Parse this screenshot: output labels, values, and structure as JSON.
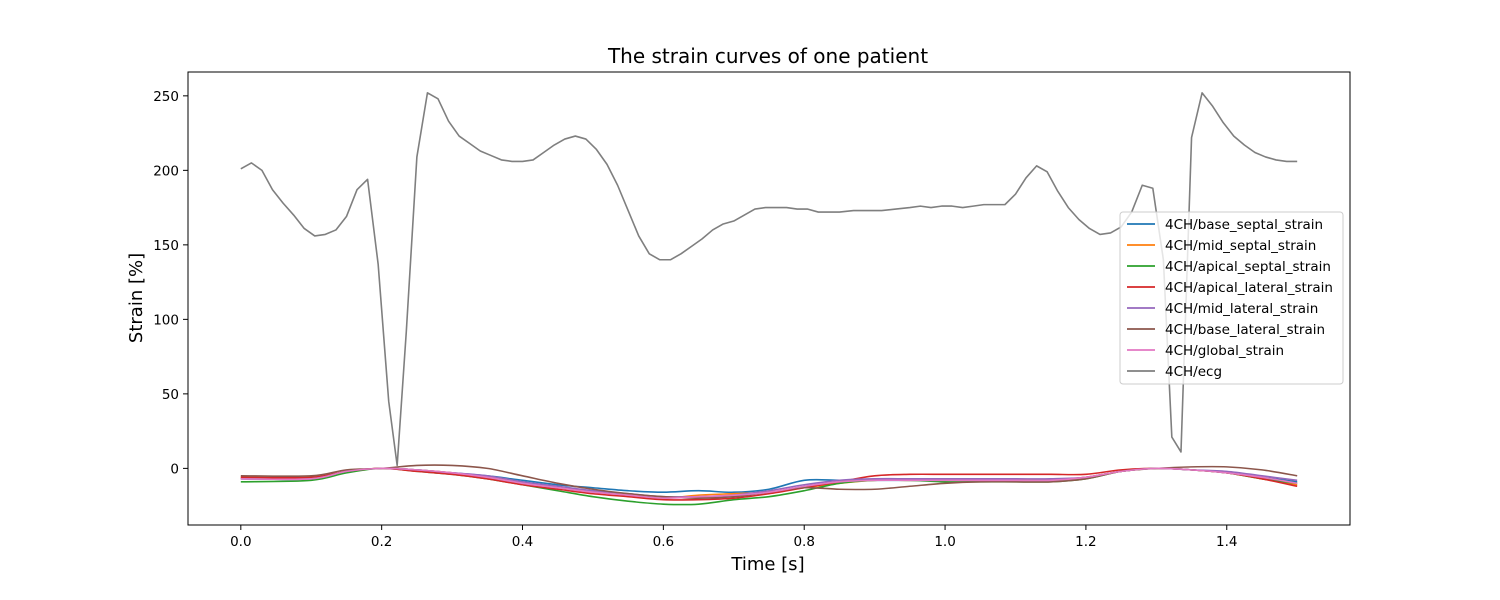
{
  "chart_data": {
    "type": "line",
    "title": "The strain curves of one patient",
    "xlabel": "Time [s]",
    "ylabel": "Strain [%]",
    "xlim": [
      -0.075,
      1.575
    ],
    "ylim": [
      -38,
      266
    ],
    "xticks": [
      0.0,
      0.2,
      0.4,
      0.6,
      0.8,
      1.0,
      1.2,
      1.4
    ],
    "xtick_labels": [
      "0.0",
      "0.2",
      "0.4",
      "0.6",
      "0.8",
      "1.0",
      "1.2",
      "1.4"
    ],
    "yticks": [
      0,
      50,
      100,
      150,
      200,
      250
    ],
    "ytick_labels": [
      "0",
      "50",
      "100",
      "150",
      "200",
      "250"
    ],
    "grid": false,
    "legend_position": "center-right",
    "series": [
      {
        "name": "4CH/base_septal_strain",
        "color": "#1f77b4",
        "x": [
          0,
          0.1,
          0.15,
          0.2,
          0.25,
          0.3,
          0.35,
          0.4,
          0.45,
          0.5,
          0.55,
          0.6,
          0.65,
          0.7,
          0.75,
          0.8,
          0.85,
          0.9,
          0.95,
          1.0,
          1.05,
          1.1,
          1.15,
          1.2,
          1.25,
          1.3,
          1.35,
          1.4,
          1.45,
          1.5
        ],
        "y": [
          -7,
          -7,
          -2,
          0,
          -1,
          -3,
          -5,
          -8,
          -11,
          -13,
          -15,
          -16,
          -15,
          -16,
          -14,
          -8,
          -8,
          -8,
          -8,
          -8,
          -8,
          -8,
          -8,
          -6,
          -2,
          0,
          -1,
          -3,
          -6,
          -9
        ]
      },
      {
        "name": "4CH/mid_septal_strain",
        "color": "#ff7f0e",
        "x": [
          0,
          0.1,
          0.15,
          0.2,
          0.25,
          0.3,
          0.35,
          0.4,
          0.45,
          0.5,
          0.55,
          0.6,
          0.65,
          0.7,
          0.75,
          0.8,
          0.85,
          0.9,
          0.95,
          1.0,
          1.05,
          1.1,
          1.15,
          1.2,
          1.25,
          1.3,
          1.35,
          1.4,
          1.45,
          1.5
        ],
        "y": [
          -6,
          -6,
          -2,
          0,
          -1,
          -3,
          -6,
          -10,
          -13,
          -16,
          -18,
          -20,
          -18,
          -17,
          -16,
          -13,
          -10,
          -8,
          -8,
          -8,
          -8,
          -8,
          -8,
          -6,
          -2,
          0,
          -1,
          -3,
          -7,
          -11
        ]
      },
      {
        "name": "4CH/apical_septal_strain",
        "color": "#2ca02c",
        "x": [
          0,
          0.1,
          0.15,
          0.2,
          0.25,
          0.3,
          0.35,
          0.4,
          0.45,
          0.5,
          0.55,
          0.6,
          0.65,
          0.7,
          0.75,
          0.8,
          0.85,
          0.9,
          0.95,
          1.0,
          1.05,
          1.1,
          1.15,
          1.2,
          1.25,
          1.3,
          1.35,
          1.4,
          1.45,
          1.5
        ],
        "y": [
          -9,
          -8,
          -3,
          0,
          -2,
          -4,
          -7,
          -11,
          -15,
          -19,
          -22,
          -24,
          -24,
          -21,
          -19,
          -15,
          -10,
          -8,
          -8,
          -9,
          -9,
          -9,
          -9,
          -7,
          -2,
          0,
          -1,
          -3,
          -7,
          -10
        ]
      },
      {
        "name": "4CH/apical_lateral_strain",
        "color": "#d62728",
        "x": [
          0,
          0.1,
          0.15,
          0.2,
          0.25,
          0.3,
          0.35,
          0.4,
          0.45,
          0.5,
          0.55,
          0.6,
          0.65,
          0.7,
          0.75,
          0.8,
          0.85,
          0.9,
          0.95,
          1.0,
          1.05,
          1.1,
          1.15,
          1.2,
          1.25,
          1.3,
          1.35,
          1.4,
          1.45,
          1.5
        ],
        "y": [
          -6,
          -6,
          -2,
          0,
          -2,
          -4,
          -7,
          -11,
          -14,
          -17,
          -19,
          -21,
          -21,
          -20,
          -17,
          -13,
          -9,
          -5,
          -4,
          -4,
          -4,
          -4,
          -4,
          -4,
          -1,
          0,
          -1,
          -3,
          -7,
          -12
        ]
      },
      {
        "name": "4CH/mid_lateral_strain",
        "color": "#9467bd",
        "x": [
          0,
          0.1,
          0.15,
          0.2,
          0.25,
          0.3,
          0.35,
          0.4,
          0.45,
          0.5,
          0.55,
          0.6,
          0.65,
          0.7,
          0.75,
          0.8,
          0.85,
          0.9,
          0.95,
          1.0,
          1.05,
          1.1,
          1.15,
          1.2,
          1.25,
          1.3,
          1.35,
          1.4,
          1.45,
          1.5
        ],
        "y": [
          -7,
          -7,
          -2,
          0,
          -1,
          -3,
          -5,
          -9,
          -12,
          -15,
          -17,
          -19,
          -19,
          -18,
          -15,
          -11,
          -8,
          -7,
          -7,
          -7,
          -7,
          -7,
          -7,
          -6,
          -2,
          0,
          -1,
          -2,
          -5,
          -8
        ]
      },
      {
        "name": "4CH/base_lateral_strain",
        "color": "#8c564b",
        "x": [
          0,
          0.1,
          0.15,
          0.2,
          0.25,
          0.3,
          0.35,
          0.4,
          0.45,
          0.5,
          0.55,
          0.6,
          0.65,
          0.7,
          0.75,
          0.8,
          0.85,
          0.9,
          0.95,
          1.0,
          1.05,
          1.1,
          1.15,
          1.2,
          1.25,
          1.3,
          1.35,
          1.4,
          1.45,
          1.5
        ],
        "y": [
          -5,
          -5,
          -1,
          0,
          2,
          2,
          0,
          -5,
          -10,
          -14,
          -17,
          -19,
          -20,
          -19,
          -16,
          -13,
          -14,
          -14,
          -12,
          -10,
          -9,
          -9,
          -9,
          -7,
          -2,
          0,
          1,
          1,
          -1,
          -5
        ]
      },
      {
        "name": "4CH/global_strain",
        "color": "#e377c2",
        "x": [
          0,
          0.1,
          0.15,
          0.2,
          0.25,
          0.3,
          0.35,
          0.4,
          0.45,
          0.5,
          0.55,
          0.6,
          0.65,
          0.7,
          0.75,
          0.8,
          0.85,
          0.9,
          0.95,
          1.0,
          1.05,
          1.1,
          1.15,
          1.2,
          1.25,
          1.3,
          1.35,
          1.4,
          1.45,
          1.5
        ],
        "y": [
          -7,
          -7,
          -2,
          0,
          -1,
          -3,
          -6,
          -10,
          -13,
          -16,
          -18,
          -20,
          -19,
          -18,
          -16,
          -12,
          -9,
          -8,
          -8,
          -8,
          -8,
          -8,
          -8,
          -6,
          -2,
          0,
          -1,
          -3,
          -6,
          -10
        ]
      },
      {
        "name": "4CH/ecg",
        "color": "#7f7f7f",
        "x": [
          0,
          0.015,
          0.03,
          0.045,
          0.06,
          0.075,
          0.09,
          0.105,
          0.12,
          0.135,
          0.15,
          0.165,
          0.18,
          0.195,
          0.21,
          0.222,
          0.235,
          0.25,
          0.265,
          0.28,
          0.295,
          0.31,
          0.325,
          0.34,
          0.355,
          0.37,
          0.385,
          0.4,
          0.415,
          0.43,
          0.445,
          0.46,
          0.475,
          0.49,
          0.505,
          0.52,
          0.535,
          0.55,
          0.565,
          0.58,
          0.595,
          0.61,
          0.625,
          0.64,
          0.655,
          0.67,
          0.685,
          0.7,
          0.715,
          0.73,
          0.745,
          0.76,
          0.775,
          0.79,
          0.805,
          0.82,
          0.835,
          0.85,
          0.87,
          0.89,
          0.91,
          0.93,
          0.95,
          0.965,
          0.98,
          0.995,
          1.01,
          1.025,
          1.04,
          1.055,
          1.07,
          1.085,
          1.1,
          1.115,
          1.13,
          1.145,
          1.16,
          1.175,
          1.19,
          1.205,
          1.22,
          1.235,
          1.25,
          1.265,
          1.28,
          1.295,
          1.31,
          1.322,
          1.335,
          1.35,
          1.365,
          1.38,
          1.395,
          1.41,
          1.425,
          1.44,
          1.455,
          1.47,
          1.485,
          1.5
        ],
        "y": [
          201,
          205,
          200,
          187,
          178,
          170,
          161,
          156,
          157,
          160,
          169,
          187,
          194,
          137,
          45,
          2,
          92,
          209,
          252,
          248,
          233,
          223,
          218,
          213,
          210,
          207,
          206,
          206,
          207,
          212,
          217,
          221,
          223,
          221,
          214,
          204,
          190,
          173,
          156,
          144,
          140,
          140,
          144,
          149,
          154,
          160,
          164,
          166,
          170,
          174,
          175,
          175,
          175,
          174,
          174,
          172,
          172,
          172,
          173,
          173,
          173,
          174,
          175,
          176,
          175,
          176,
          176,
          175,
          176,
          177,
          177,
          177,
          184,
          195,
          203,
          199,
          186,
          175,
          167,
          161,
          157,
          158,
          162,
          172,
          190,
          188,
          140,
          21,
          11,
          222,
          252,
          243,
          232,
          223,
          217,
          212,
          209,
          207,
          206,
          206
        ]
      }
    ]
  }
}
